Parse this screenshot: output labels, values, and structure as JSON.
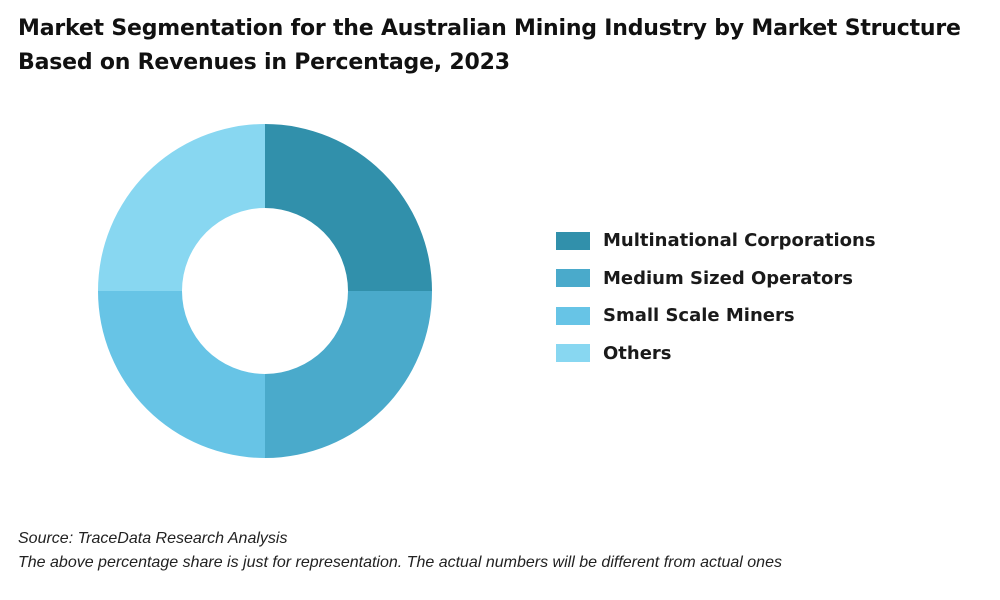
{
  "chart_data": {
    "type": "pie",
    "title": "Market Segmentation for the Australian Mining Industry by Market Structure Based on Revenues in Percentage, 2023",
    "categories": [
      "Multinational Corporations",
      "Medium Sized Operators",
      "Small Scale Miners",
      "Others"
    ],
    "values": [
      25,
      25,
      25,
      25
    ],
    "colors": [
      "#3190ab",
      "#4aaacb",
      "#67c4e6",
      "#88d7f1"
    ],
    "donut": true,
    "legend_position": "right"
  },
  "footer": {
    "source": "Source: TraceData Research Analysis",
    "note": "The above percentage share is just for representation. The actual numbers will be different from actual ones"
  }
}
